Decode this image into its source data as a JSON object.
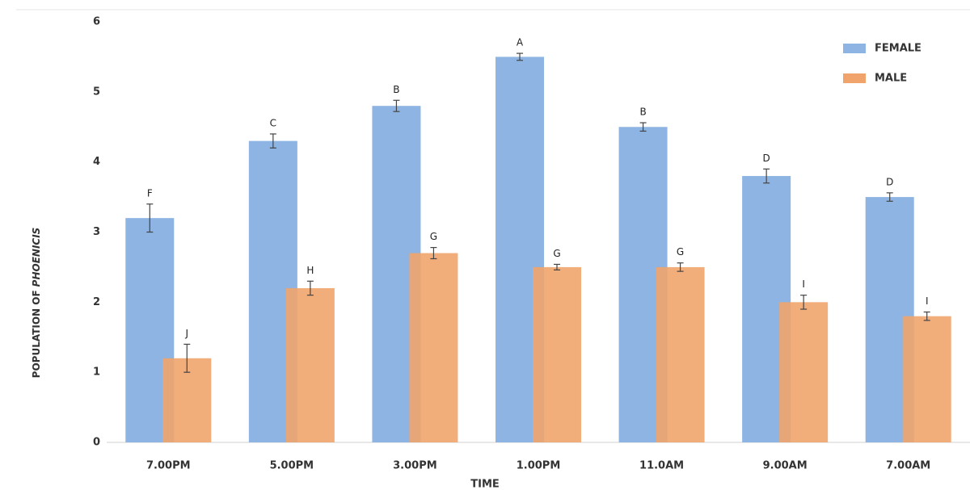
{
  "chart_data": {
    "type": "bar",
    "xlabel": "TIME",
    "ylabel": [
      "POPULATION OF",
      "PHOENICIS"
    ],
    "categories": [
      "7.00PM",
      "5.00PM",
      "3.00PM",
      "1.00PM",
      "11.0AM",
      "9.00AM",
      "7.00AM"
    ],
    "series": [
      {
        "name": "FEMALE",
        "color": "#8db4e2",
        "values": [
          3.2,
          4.3,
          4.8,
          5.5,
          4.5,
          3.8,
          3.5
        ],
        "errors": [
          0.2,
          0.1,
          0.08,
          0.05,
          0.06,
          0.1,
          0.06
        ],
        "annotations": [
          "F",
          "C",
          "B",
          "A",
          "B",
          "D",
          "D"
        ]
      },
      {
        "name": "MALE",
        "color": "#f0a46c",
        "values": [
          1.2,
          2.2,
          2.7,
          2.5,
          2.5,
          2.0,
          1.8
        ],
        "errors": [
          0.2,
          0.1,
          0.08,
          0.04,
          0.06,
          0.1,
          0.06
        ],
        "annotations": [
          "J",
          "H",
          "G",
          "G",
          "G",
          "I",
          "I"
        ]
      }
    ],
    "ylim": [
      0,
      6
    ],
    "yticks": [
      0,
      1,
      2,
      3,
      4,
      5,
      6
    ],
    "grid": false,
    "legend": "top-right"
  }
}
